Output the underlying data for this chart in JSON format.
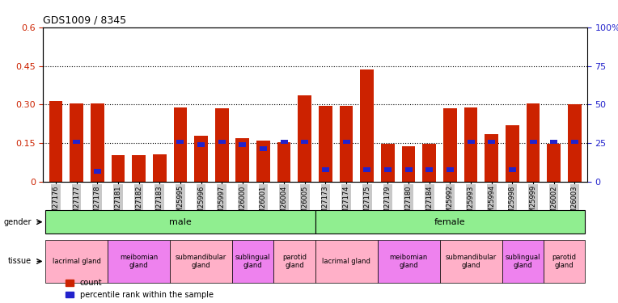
{
  "title": "GDS1009 / 8345",
  "samples": [
    "GSM27176",
    "GSM27177",
    "GSM27178",
    "GSM27181",
    "GSM27182",
    "GSM27183",
    "GSM25995",
    "GSM25996",
    "GSM25997",
    "GSM26000",
    "GSM26001",
    "GSM26004",
    "GSM26005",
    "GSM27173",
    "GSM27174",
    "GSM27175",
    "GSM27179",
    "GSM27180",
    "GSM27184",
    "GSM25992",
    "GSM25993",
    "GSM25994",
    "GSM25998",
    "GSM25999",
    "GSM26002",
    "GSM26003"
  ],
  "red_values": [
    0.315,
    0.305,
    0.305,
    0.105,
    0.105,
    0.108,
    0.29,
    0.178,
    0.285,
    0.168,
    0.16,
    0.155,
    0.335,
    0.295,
    0.295,
    0.435,
    0.148,
    0.138,
    0.148,
    0.285,
    0.29,
    0.185,
    0.22,
    0.305,
    0.148,
    0.3
  ],
  "blue_values": [
    0.0,
    0.155,
    0.04,
    0.0,
    0.0,
    0.0,
    0.155,
    0.145,
    0.155,
    0.145,
    0.128,
    0.155,
    0.155,
    0.048,
    0.155,
    0.048,
    0.048,
    0.048,
    0.048,
    0.048,
    0.155,
    0.155,
    0.048,
    0.155,
    0.155,
    0.155
  ],
  "gender_groups": [
    {
      "label": "male",
      "start": 0,
      "end": 13
    },
    {
      "label": "female",
      "start": 13,
      "end": 26
    }
  ],
  "tissue_groups": [
    {
      "label": "lacrimal gland",
      "start": 0,
      "end": 3,
      "color": "#FFB0C8"
    },
    {
      "label": "meibomian\ngland",
      "start": 3,
      "end": 6,
      "color": "#EE82EE"
    },
    {
      "label": "submandibular\ngland",
      "start": 6,
      "end": 9,
      "color": "#FFB0C8"
    },
    {
      "label": "sublingual\ngland",
      "start": 9,
      "end": 11,
      "color": "#EE82EE"
    },
    {
      "label": "parotid\ngland",
      "start": 11,
      "end": 13,
      "color": "#FFB0C8"
    },
    {
      "label": "lacrimal gland",
      "start": 13,
      "end": 16,
      "color": "#FFB0C8"
    },
    {
      "label": "meibomian\ngland",
      "start": 16,
      "end": 19,
      "color": "#EE82EE"
    },
    {
      "label": "submandibular\ngland",
      "start": 19,
      "end": 22,
      "color": "#FFB0C8"
    },
    {
      "label": "sublingual\ngland",
      "start": 22,
      "end": 24,
      "color": "#EE82EE"
    },
    {
      "label": "parotid\ngland",
      "start": 24,
      "end": 26,
      "color": "#FFB0C8"
    }
  ],
  "ylim_left": [
    0,
    0.6
  ],
  "ylim_right": [
    0,
    100
  ],
  "yticks_left": [
    0,
    0.15,
    0.3,
    0.45,
    0.6
  ],
  "yticks_right": [
    0,
    25,
    50,
    75,
    100
  ],
  "ytick_labels_left": [
    "0",
    "0.15",
    "0.30",
    "0.45",
    "0.6"
  ],
  "ytick_labels_right": [
    "0",
    "25",
    "50",
    "75",
    "100%"
  ],
  "hlines": [
    0.15,
    0.3,
    0.45
  ],
  "bar_color_red": "#CC2200",
  "bar_color_blue": "#2222CC",
  "bar_width": 0.65,
  "blue_bar_width": 0.35,
  "legend_count": "count",
  "legend_pct": "percentile rank within the sample",
  "left_ycolor": "#CC2200",
  "right_ycolor": "#2222CC",
  "gender_color": "#90EE90",
  "tick_label_bg": "#C8C8C8"
}
